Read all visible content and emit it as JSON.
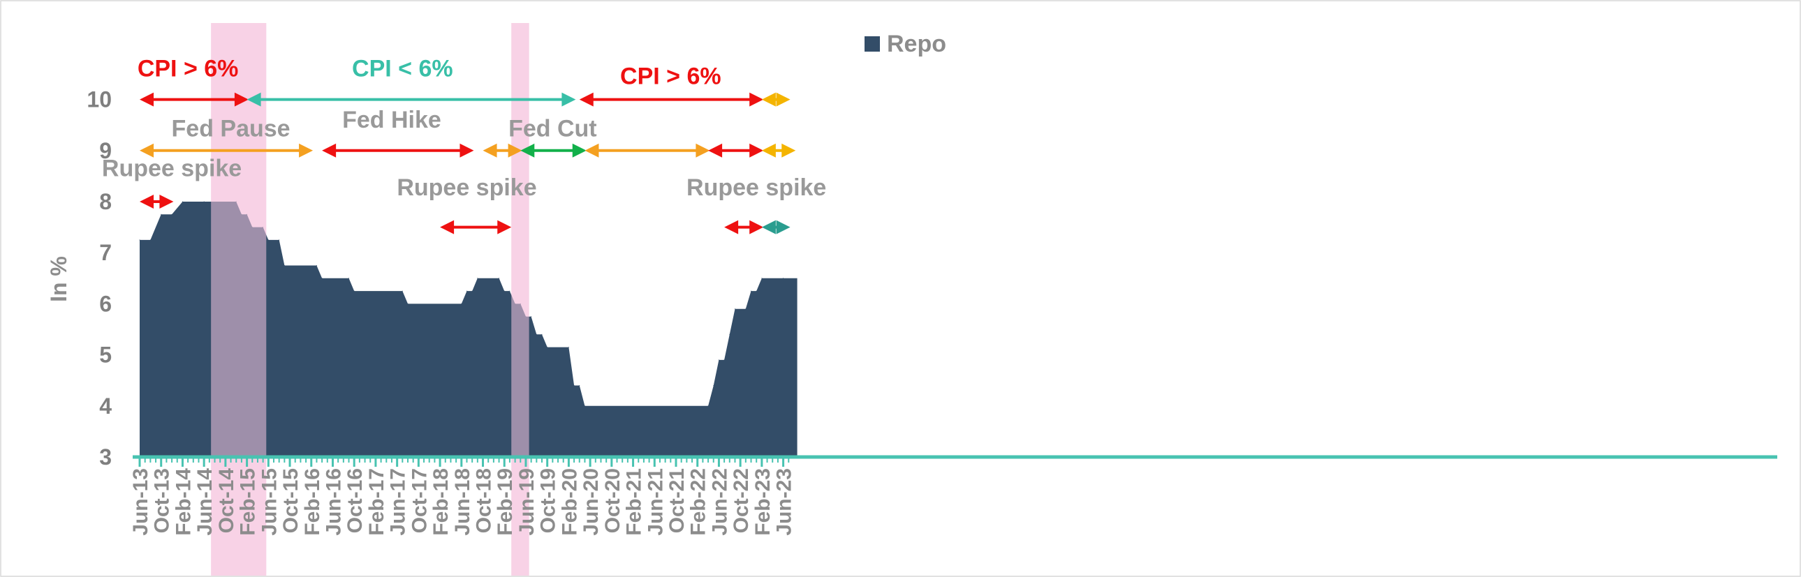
{
  "chart_data": {
    "type": "area",
    "ylabel": "In %",
    "xlabel": "",
    "ylim": [
      3,
      10.9
    ],
    "yticks": [
      3,
      4,
      5,
      6,
      7,
      8,
      9,
      10
    ],
    "x_tick_labels": [
      "Jun-13",
      "Oct-13",
      "Feb-14",
      "Jun-14",
      "Oct-14",
      "Feb-15",
      "Jun-15",
      "Oct-15",
      "Feb-16",
      "Jun-16",
      "Oct-16",
      "Feb-17",
      "Jun-17",
      "Oct-17",
      "Feb-18",
      "Jun-18",
      "Oct-18",
      "Feb-19",
      "Jun-19",
      "Oct-19",
      "Feb-20",
      "Jun-20",
      "Oct-20",
      "Feb-21",
      "Jun-21",
      "Oct-21",
      "Feb-22",
      "Jun-22",
      "Oct-22",
      "Feb-23",
      "Jun-23"
    ],
    "legend": {
      "position": "top-center"
    },
    "series": [
      {
        "name": "Repo",
        "color": "#334d68",
        "points": [
          {
            "x": "Jun-13",
            "y": 7.25
          },
          {
            "x": "Aug-13",
            "y": 7.25
          },
          {
            "x": "Oct-13",
            "y": 7.75
          },
          {
            "x": "Dec-13",
            "y": 7.75
          },
          {
            "x": "Feb-14",
            "y": 8.0
          },
          {
            "x": "Jun-14",
            "y": 8.0
          },
          {
            "x": "Dec-14",
            "y": 8.0
          },
          {
            "x": "Jan-15",
            "y": 7.75
          },
          {
            "x": "Feb-15",
            "y": 7.75
          },
          {
            "x": "Mar-15",
            "y": 7.5
          },
          {
            "x": "May-15",
            "y": 7.5
          },
          {
            "x": "Jun-15",
            "y": 7.25
          },
          {
            "x": "Aug-15",
            "y": 7.25
          },
          {
            "x": "Sep-15",
            "y": 6.75
          },
          {
            "x": "Mar-16",
            "y": 6.75
          },
          {
            "x": "Apr-16",
            "y": 6.5
          },
          {
            "x": "Sep-16",
            "y": 6.5
          },
          {
            "x": "Oct-16",
            "y": 6.25
          },
          {
            "x": "Jul-17",
            "y": 6.25
          },
          {
            "x": "Aug-17",
            "y": 6.0
          },
          {
            "x": "Jun-18",
            "y": 6.0
          },
          {
            "x": "Jul-18",
            "y": 6.25
          },
          {
            "x": "Aug-18",
            "y": 6.25
          },
          {
            "x": "Sep-18",
            "y": 6.5
          },
          {
            "x": "Jan-19",
            "y": 6.5
          },
          {
            "x": "Feb-19",
            "y": 6.25
          },
          {
            "x": "Mar-19",
            "y": 6.25
          },
          {
            "x": "Apr-19",
            "y": 6.0
          },
          {
            "x": "May-19",
            "y": 6.0
          },
          {
            "x": "Jun-19",
            "y": 5.75
          },
          {
            "x": "Jul-19",
            "y": 5.75
          },
          {
            "x": "Aug-19",
            "y": 5.4
          },
          {
            "x": "Sep-19",
            "y": 5.4
          },
          {
            "x": "Oct-19",
            "y": 5.15
          },
          {
            "x": "Feb-20",
            "y": 5.15
          },
          {
            "x": "Mar-20",
            "y": 4.4
          },
          {
            "x": "Apr-20",
            "y": 4.4
          },
          {
            "x": "May-20",
            "y": 4.0
          },
          {
            "x": "Apr-22",
            "y": 4.0
          },
          {
            "x": "May-22",
            "y": 4.4
          },
          {
            "x": "Jun-22",
            "y": 4.9
          },
          {
            "x": "Jul-22",
            "y": 4.9
          },
          {
            "x": "Aug-22",
            "y": 5.4
          },
          {
            "x": "Sep-22",
            "y": 5.9
          },
          {
            "x": "Nov-22",
            "y": 5.9
          },
          {
            "x": "Dec-22",
            "y": 6.25
          },
          {
            "x": "Jan-23",
            "y": 6.25
          },
          {
            "x": "Feb-23",
            "y": 6.5
          },
          {
            "x": "Jun-23",
            "y": 6.5
          }
        ]
      }
    ],
    "shaded_periods": [
      {
        "start": "Jun-14",
        "end": "Mar-15",
        "color": "#f5c6e0"
      },
      {
        "start": "Feb-19",
        "end": "Apr-19",
        "color": "#f5c6e0"
      }
    ],
    "annotations": [
      {
        "text": "CPI > 6%",
        "color": "#ee1111",
        "y": 10.0,
        "start": "Jun-13",
        "end": "Jan-15",
        "label_at": "Mar-14",
        "label_dy": -0.45
      },
      {
        "text": "CPI < 6%",
        "color": "#38bfa7",
        "y": 10.0,
        "start": "Feb-15",
        "end": "Feb-20",
        "label_at": "Jul-17",
        "label_dy": -0.45
      },
      {
        "text": "CPI > 6%",
        "color": "#ee1111",
        "y": 10.0,
        "start": "Apr-20",
        "end": "Jan-23",
        "label_at": "Sep-21",
        "label_dy": -0.3
      },
      {
        "text": "",
        "color": "#f4b400",
        "y": 10.0,
        "start": "Feb-23",
        "end": "Jun-23"
      },
      {
        "text": "Fed Pause",
        "color": "#999999",
        "y": 9.0,
        "start": "Jun-13",
        "end": "Jan-16",
        "label_at": "Nov-14",
        "label_dy": -0.28,
        "arrow_color": "#f4a020"
      },
      {
        "text": "Fed Hike",
        "color": "#999999",
        "y": 9.0,
        "start": "Apr-16",
        "end": "Jul-18",
        "label_at": "May-17",
        "label_dy": -0.45,
        "arrow_color": "#ee1111"
      },
      {
        "text": "",
        "color": "#f4a020",
        "y": 9.0,
        "start": "Oct-18",
        "end": "Apr-19"
      },
      {
        "text": "Fed Cut",
        "color": "#999999",
        "y": 9.0,
        "start": "May-19",
        "end": "Apr-20",
        "label_at": "Nov-19",
        "label_dy": -0.28,
        "arrow_color": "#12b04a"
      },
      {
        "text": "",
        "color": "#f4a020",
        "y": 9.0,
        "start": "May-20",
        "end": "Mar-22"
      },
      {
        "text": "",
        "color": "#ee1111",
        "y": 9.0,
        "start": "Apr-22",
        "end": "Jan-23"
      },
      {
        "text": "",
        "color": "#f4b400",
        "y": 9.0,
        "start": "Feb-23",
        "end": "Jul-23"
      },
      {
        "text": "Rupee spike",
        "color": "#999999",
        "y": 8.0,
        "start": "Jun-13",
        "end": "Nov-13",
        "label_at": "Dec-13",
        "label_dy": -0.5,
        "arrow_color": "#ee1111"
      },
      {
        "text": "Rupee spike",
        "color": "#999999",
        "y": 7.5,
        "start": "Feb-18",
        "end": "Feb-19",
        "label_at": "Jul-18",
        "label_dy": -0.62,
        "arrow_color": "#ee1111"
      },
      {
        "text": "Rupee spike",
        "color": "#999999",
        "y": 7.5,
        "start": "Jul-22",
        "end": "Jan-23",
        "label_at": "Jan-23",
        "label_dy": -0.62,
        "arrow_color": "#ee1111"
      },
      {
        "text": "",
        "color": "#2a9d8f",
        "y": 7.5,
        "start": "Feb-23",
        "end": "Jun-23"
      }
    ]
  }
}
